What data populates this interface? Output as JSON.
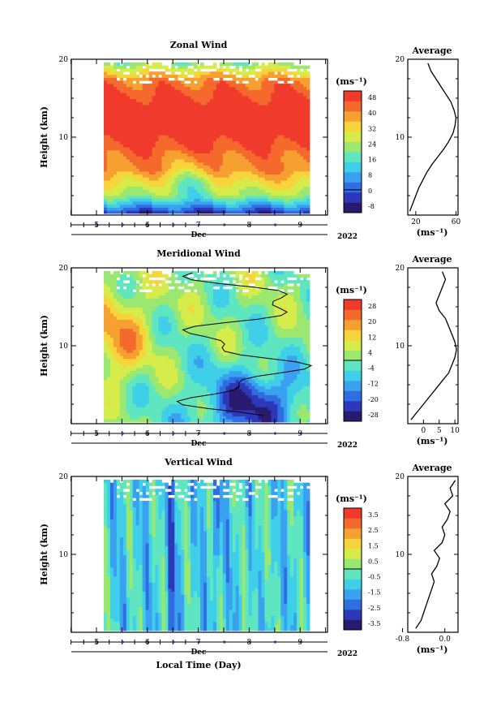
{
  "palette": [
    "#2a1a6e",
    "#2c38b8",
    "#2f6de0",
    "#3aa0f0",
    "#3fcfe8",
    "#5fe6c0",
    "#9ae870",
    "#d6ec4a",
    "#f6d43a",
    "#f7a032",
    "#f56a2c",
    "#f03a2c"
  ],
  "chart_data": [
    {
      "type": "heatmap",
      "title": "Zonal Wind",
      "ylabel": "Height (km)",
      "xlabel": "Dec",
      "year": "2022",
      "units": "(ms⁻¹)",
      "ylim": [
        0,
        20
      ],
      "yticks": [
        "10",
        "20"
      ],
      "xticks": [
        "5",
        "6",
        "7",
        "8",
        "9"
      ],
      "colorbar_ticks": [
        "48",
        "40",
        "32",
        "24",
        "16",
        "8",
        "0",
        "-8"
      ],
      "colorbar_range": [
        -12,
        52
      ],
      "zero_contour": false,
      "profile": {
        "title": "Average",
        "xlabel": "(ms⁻¹)",
        "xlim": [
          12,
          62
        ],
        "xticks": [
          "20",
          "60"
        ],
        "yticks": [
          "10",
          "20"
        ],
        "points": [
          [
            14,
            0.5
          ],
          [
            17,
            1.5
          ],
          [
            20,
            2.5
          ],
          [
            23,
            3.5
          ],
          [
            27,
            4.5
          ],
          [
            31,
            5.5
          ],
          [
            36,
            6.5
          ],
          [
            42,
            7.5
          ],
          [
            48,
            8.5
          ],
          [
            53,
            9.5
          ],
          [
            57,
            10.5
          ],
          [
            59,
            11.5
          ],
          [
            60,
            12.5
          ],
          [
            58,
            13.5
          ],
          [
            55,
            14.5
          ],
          [
            50,
            15.5
          ],
          [
            45,
            16.5
          ],
          [
            40,
            17.5
          ],
          [
            35,
            18.5
          ],
          [
            32,
            19.5
          ]
        ]
      }
    },
    {
      "type": "heatmap",
      "title": "Meridional Wind",
      "ylabel": "Height (km)",
      "xlabel": "Dec",
      "year": "2022",
      "units": "(ms⁻¹)",
      "ylim": [
        0,
        20
      ],
      "yticks": [
        "10",
        "20"
      ],
      "xticks": [
        "5",
        "6",
        "7",
        "8",
        "9"
      ],
      "colorbar_ticks": [
        "28",
        "20",
        "12",
        "4",
        "-4",
        "-12",
        "-20",
        "-28"
      ],
      "colorbar_range": [
        -32,
        32
      ],
      "zero_contour": true,
      "profile": {
        "title": "Average",
        "xlabel": "(ms⁻¹)",
        "xlim": [
          -5,
          11
        ],
        "xticks": [
          "0",
          "5",
          "10"
        ],
        "yticks": [
          "10",
          "20"
        ],
        "points": [
          [
            -4,
            0.5
          ],
          [
            -2,
            1.5
          ],
          [
            0,
            2.5
          ],
          [
            2,
            3.5
          ],
          [
            4,
            4.5
          ],
          [
            6,
            5.5
          ],
          [
            8,
            6.5
          ],
          [
            9,
            7.5
          ],
          [
            10,
            8.5
          ],
          [
            10.5,
            9.5
          ],
          [
            10,
            10.5
          ],
          [
            9,
            11.5
          ],
          [
            8,
            12.5
          ],
          [
            7,
            13.5
          ],
          [
            5,
            14.5
          ],
          [
            4,
            15.5
          ],
          [
            5,
            16.5
          ],
          [
            6,
            17.5
          ],
          [
            7,
            18.5
          ],
          [
            6,
            19.5
          ]
        ]
      }
    },
    {
      "type": "heatmap",
      "title": "Vertical Wind",
      "ylabel": "Height (km)",
      "xlabel": "Dec",
      "year": "2022",
      "units": "(ms⁻¹)",
      "ylim": [
        0,
        20
      ],
      "yticks": [
        "10",
        "20"
      ],
      "xticks": [
        "5",
        "6",
        "7",
        "8",
        "9"
      ],
      "colorbar_ticks": [
        "3.5",
        "2.5",
        "1.5",
        "0.5",
        "-0.5",
        "-1.5",
        "-2.5",
        "-3.5"
      ],
      "colorbar_range": [
        -4,
        4
      ],
      "zero_contour": false,
      "profile": {
        "title": "Average",
        "xlabel": "(ms⁻¹)",
        "xlim": [
          -0.7,
          0.25
        ],
        "xticks": [
          "-0.8",
          "0.0"
        ],
        "yticks": [
          "10",
          "20"
        ],
        "points": [
          [
            -0.55,
            0.5
          ],
          [
            -0.45,
            1.5
          ],
          [
            -0.4,
            2.5
          ],
          [
            -0.35,
            3.5
          ],
          [
            -0.3,
            4.5
          ],
          [
            -0.25,
            5.5
          ],
          [
            -0.2,
            6.5
          ],
          [
            -0.25,
            7.5
          ],
          [
            -0.15,
            8.5
          ],
          [
            -0.1,
            9.5
          ],
          [
            -0.2,
            10.5
          ],
          [
            -0.05,
            11.5
          ],
          [
            0.0,
            12.5
          ],
          [
            -0.05,
            13.5
          ],
          [
            0.05,
            14.5
          ],
          [
            0.1,
            15.5
          ],
          [
            0.0,
            16.5
          ],
          [
            0.15,
            17.5
          ],
          [
            0.1,
            18.5
          ],
          [
            0.2,
            19.5
          ]
        ]
      }
    }
  ],
  "footer": {
    "xlabel": "Local Time (Day)"
  }
}
